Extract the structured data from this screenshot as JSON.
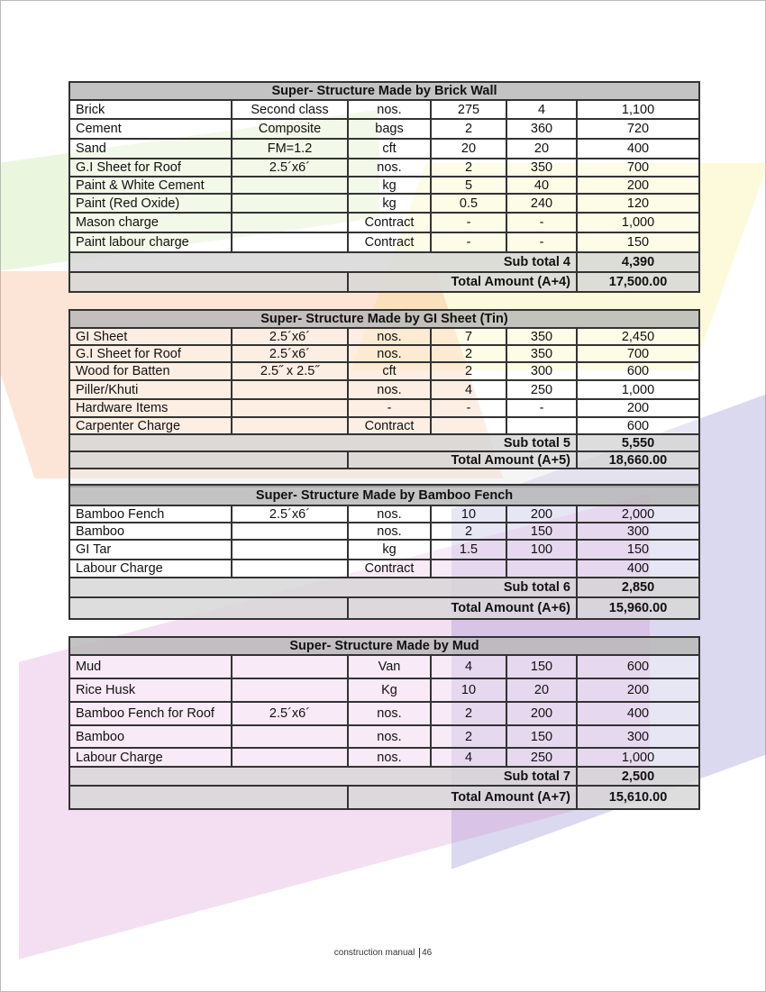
{
  "tables": [
    {
      "title": "Super- Structure Made by Brick Wall",
      "rows": [
        [
          "Brick",
          "Second class",
          "nos.",
          "275",
          "4",
          "1,100"
        ],
        [
          "Cement",
          "Composite",
          "bags",
          "2",
          "360",
          "720"
        ],
        [
          "Sand",
          "FM=1.2",
          "cft",
          "20",
          "20",
          "400"
        ],
        [
          "G.I Sheet for Roof",
          "2.5´x6´",
          "nos.",
          "2",
          "350",
          "700"
        ],
        [
          "Paint & White Cement",
          "",
          "kg",
          "5",
          "40",
          "200"
        ],
        [
          "Paint (Red Oxide)",
          "",
          "kg",
          "0.5",
          "240",
          "120"
        ],
        [
          "Mason charge",
          "",
          "Contract",
          "-",
          "-",
          "1,000"
        ],
        [
          "Paint labour charge",
          "",
          "Contract",
          "-",
          "-",
          "150"
        ]
      ],
      "subtotal_label": "Sub total 4",
      "subtotal": "4,390",
      "total_label": "Total Amount (A+4)",
      "total": "17,500.00"
    },
    {
      "title": "Super- Structure Made by GI Sheet (Tin)",
      "rows": [
        [
          "GI Sheet",
          "2.5´x6´",
          "nos.",
          "7",
          "350",
          "2,450"
        ],
        [
          "G.I Sheet for Roof",
          "2.5´x6´",
          "nos.",
          "2",
          "350",
          "700"
        ],
        [
          "Wood for Batten",
          "2.5˝ x 2.5˝",
          "cft",
          "2",
          "300",
          "600"
        ],
        [
          "Piller/Khuti",
          "",
          "nos.",
          "4",
          "250",
          "1,000"
        ],
        [
          "Hardware Items",
          "",
          "-",
          "-",
          "-",
          "200"
        ],
        [
          "Carpenter Charge",
          "",
          "Contract",
          "",
          "",
          "600"
        ]
      ],
      "subtotal_label": "Sub total 5",
      "subtotal": "5,550",
      "total_label": "Total Amount (A+5)",
      "total": "18,660.00"
    },
    {
      "title": "Super- Structure Made by Bamboo Fench",
      "rows": [
        [
          "Bamboo Fench",
          "2.5´x6´",
          "nos.",
          "10",
          "200",
          "2,000"
        ],
        [
          "Bamboo",
          "",
          "nos.",
          "2",
          "150",
          "300"
        ],
        [
          "GI Tar",
          "",
          "kg",
          "1.5",
          "100",
          "150"
        ],
        [
          "Labour Charge",
          "",
          "Contract",
          "",
          "",
          "400"
        ]
      ],
      "subtotal_label": "Sub total 6",
      "subtotal": "2,850",
      "total_label": "Total Amount (A+6)",
      "total": "15,960.00"
    },
    {
      "title": "Super- Structure Made by Mud",
      "rows": [
        [
          "Mud",
          "",
          "Van",
          "4",
          "150",
          "600"
        ],
        [
          "Rice Husk",
          "",
          "Kg",
          "10",
          "20",
          "200"
        ],
        [
          "Bamboo Fench for Roof",
          "2.5´x6´",
          "nos.",
          "2",
          "200",
          "400"
        ],
        [
          "Bamboo",
          "",
          "nos.",
          "2",
          "150",
          "300"
        ],
        [
          "Labour Charge",
          "",
          "nos.",
          "4",
          "250",
          "1,000"
        ]
      ],
      "subtotal_label": "Sub total 7",
      "subtotal": "2,500",
      "total_label": "Total Amount (A+7)",
      "total": "15,610.00"
    }
  ],
  "footer": {
    "text": "construction manual",
    "page": "46"
  },
  "colors": {
    "header_gray": "#b9b9b9",
    "total_gray": "#d7d7d7"
  }
}
